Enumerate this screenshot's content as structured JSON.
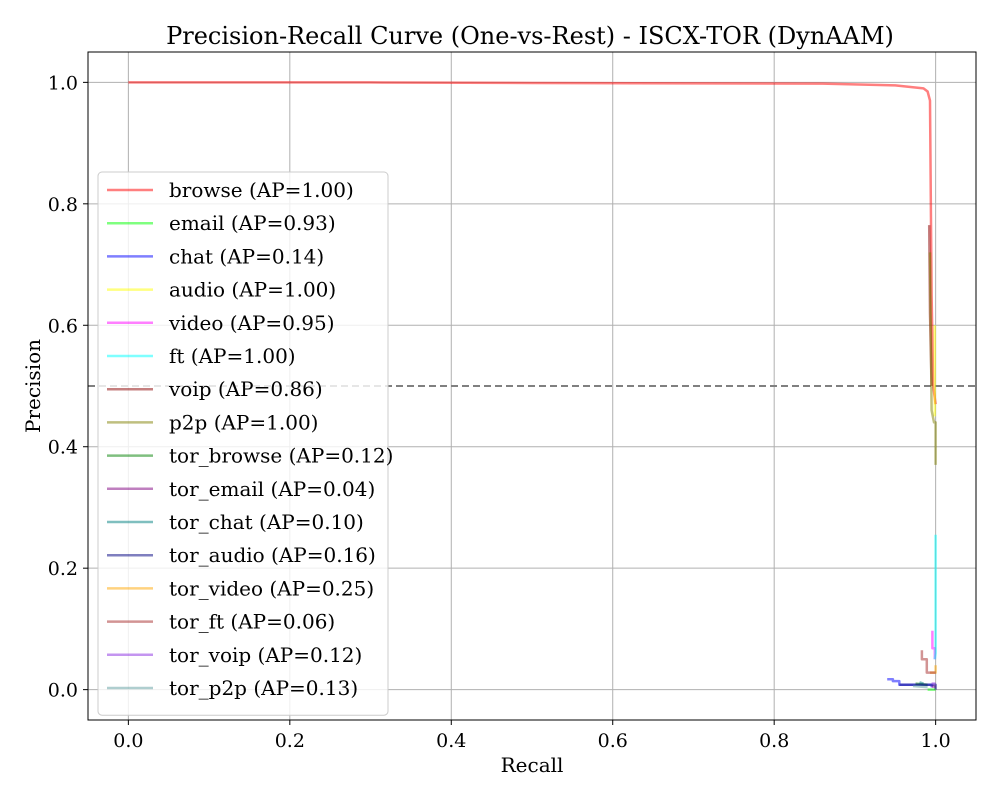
{
  "chart_data": {
    "type": "line",
    "title": "Precision-Recall Curve (One-vs-Rest) - ISCX-TOR (DynAAM)",
    "xlabel": "Recall",
    "ylabel": "Precision",
    "xlim": [
      -0.05,
      1.05
    ],
    "ylim": [
      -0.05,
      1.05
    ],
    "xticks": [
      0.0,
      0.2,
      0.4,
      0.6,
      0.8,
      1.0
    ],
    "xtick_labels": [
      "0.0",
      "0.2",
      "0.4",
      "0.6",
      "0.8",
      "1.0"
    ],
    "yticks": [
      0.0,
      0.2,
      0.4,
      0.6,
      0.8,
      1.0
    ],
    "ytick_labels": [
      "0.0",
      "0.2",
      "0.4",
      "0.6",
      "0.8",
      "1.0"
    ],
    "grid": true,
    "legend_position": "center-left",
    "baseline": {
      "y": 0.5,
      "style": "dashed",
      "color": "#808080"
    },
    "series": [
      {
        "name": "browse (AP=1.00)",
        "color": "#ff0000",
        "x": [
          0.0,
          0.3,
          0.5,
          0.86,
          0.95,
          0.985,
          0.99,
          0.993,
          0.995,
          0.997,
          1.0
        ],
        "y": [
          1.0,
          1.0,
          0.999,
          0.998,
          0.995,
          0.99,
          0.985,
          0.97,
          0.65,
          0.5,
          0.47
        ]
      },
      {
        "name": "email (AP=0.93)",
        "color": "#00ff00",
        "x": [
          0.99,
          0.995,
          1.0
        ],
        "y": [
          0.0,
          0.0,
          0.0
        ]
      },
      {
        "name": "chat (AP=0.14)",
        "color": "#0000ff",
        "x": [
          0.94,
          0.947,
          0.947,
          0.955,
          0.955,
          0.995,
          0.995
        ],
        "y": [
          0.017,
          0.017,
          0.014,
          0.014,
          0.008,
          0.008,
          0.004
        ]
      },
      {
        "name": "audio (AP=1.00)",
        "color": "#ffff00",
        "x": [
          0.999,
          0.999
        ],
        "y": [
          0.6,
          0.45
        ]
      },
      {
        "name": "video (AP=0.95)",
        "color": "#ff00ff",
        "x": [
          0.996,
          0.996,
          0.999,
          0.999
        ],
        "y": [
          0.097,
          0.068,
          0.068,
          0.05
        ]
      },
      {
        "name": "ft (AP=1.00)",
        "color": "#00ffff",
        "x": [
          1.0,
          1.0,
          0.999
        ],
        "y": [
          0.255,
          0.06,
          0.05
        ]
      },
      {
        "name": "voip (AP=0.86)",
        "color": "#8b0000",
        "x": [
          0.992,
          0.993,
          0.994,
          0.995
        ],
        "y": [
          0.765,
          0.62,
          0.56,
          0.5
        ]
      },
      {
        "name": "p2p (AP=1.00)",
        "color": "#808000",
        "x": [
          0.993,
          0.995,
          0.998,
          1.0,
          1.0
        ],
        "y": [
          0.72,
          0.46,
          0.44,
          0.44,
          0.37
        ]
      },
      {
        "name": "tor_browse (AP=0.12)",
        "color": "#008000",
        "x": [
          0.975,
          0.99
        ],
        "y": [
          0.01,
          0.008
        ]
      },
      {
        "name": "tor_email (AP=0.04)",
        "color": "#800080",
        "x": [
          0.995,
          1.0
        ],
        "y": [
          0.005,
          0.005
        ]
      },
      {
        "name": "tor_chat (AP=0.10)",
        "color": "#008080",
        "x": [
          0.98,
          0.985
        ],
        "y": [
          0.012,
          0.01
        ]
      },
      {
        "name": "tor_audio (AP=0.16)",
        "color": "#000080",
        "x": [
          0.955,
          1.0,
          1.0
        ],
        "y": [
          0.008,
          0.008,
          0.0
        ]
      },
      {
        "name": "tor_video (AP=0.25)",
        "color": "#ffa500",
        "x": [
          0.993,
          1.0,
          1.0
        ],
        "y": [
          0.028,
          0.028,
          0.04
        ]
      },
      {
        "name": "tor_ft (AP=0.06)",
        "color": "#a52a2a",
        "x": [
          0.983,
          0.983,
          0.989,
          0.989,
          1.0
        ],
        "y": [
          0.065,
          0.05,
          0.05,
          0.028,
          0.028
        ]
      },
      {
        "name": "tor_voip (AP=0.12)",
        "color": "#8a2be2",
        "x": [
          0.995,
          1.0
        ],
        "y": [
          0.01,
          0.01
        ]
      },
      {
        "name": "tor_p2p (AP=0.13)",
        "color": "#5f9ea0",
        "x": [
          0.972,
          0.99
        ],
        "y": [
          0.006,
          0.004
        ]
      }
    ]
  }
}
